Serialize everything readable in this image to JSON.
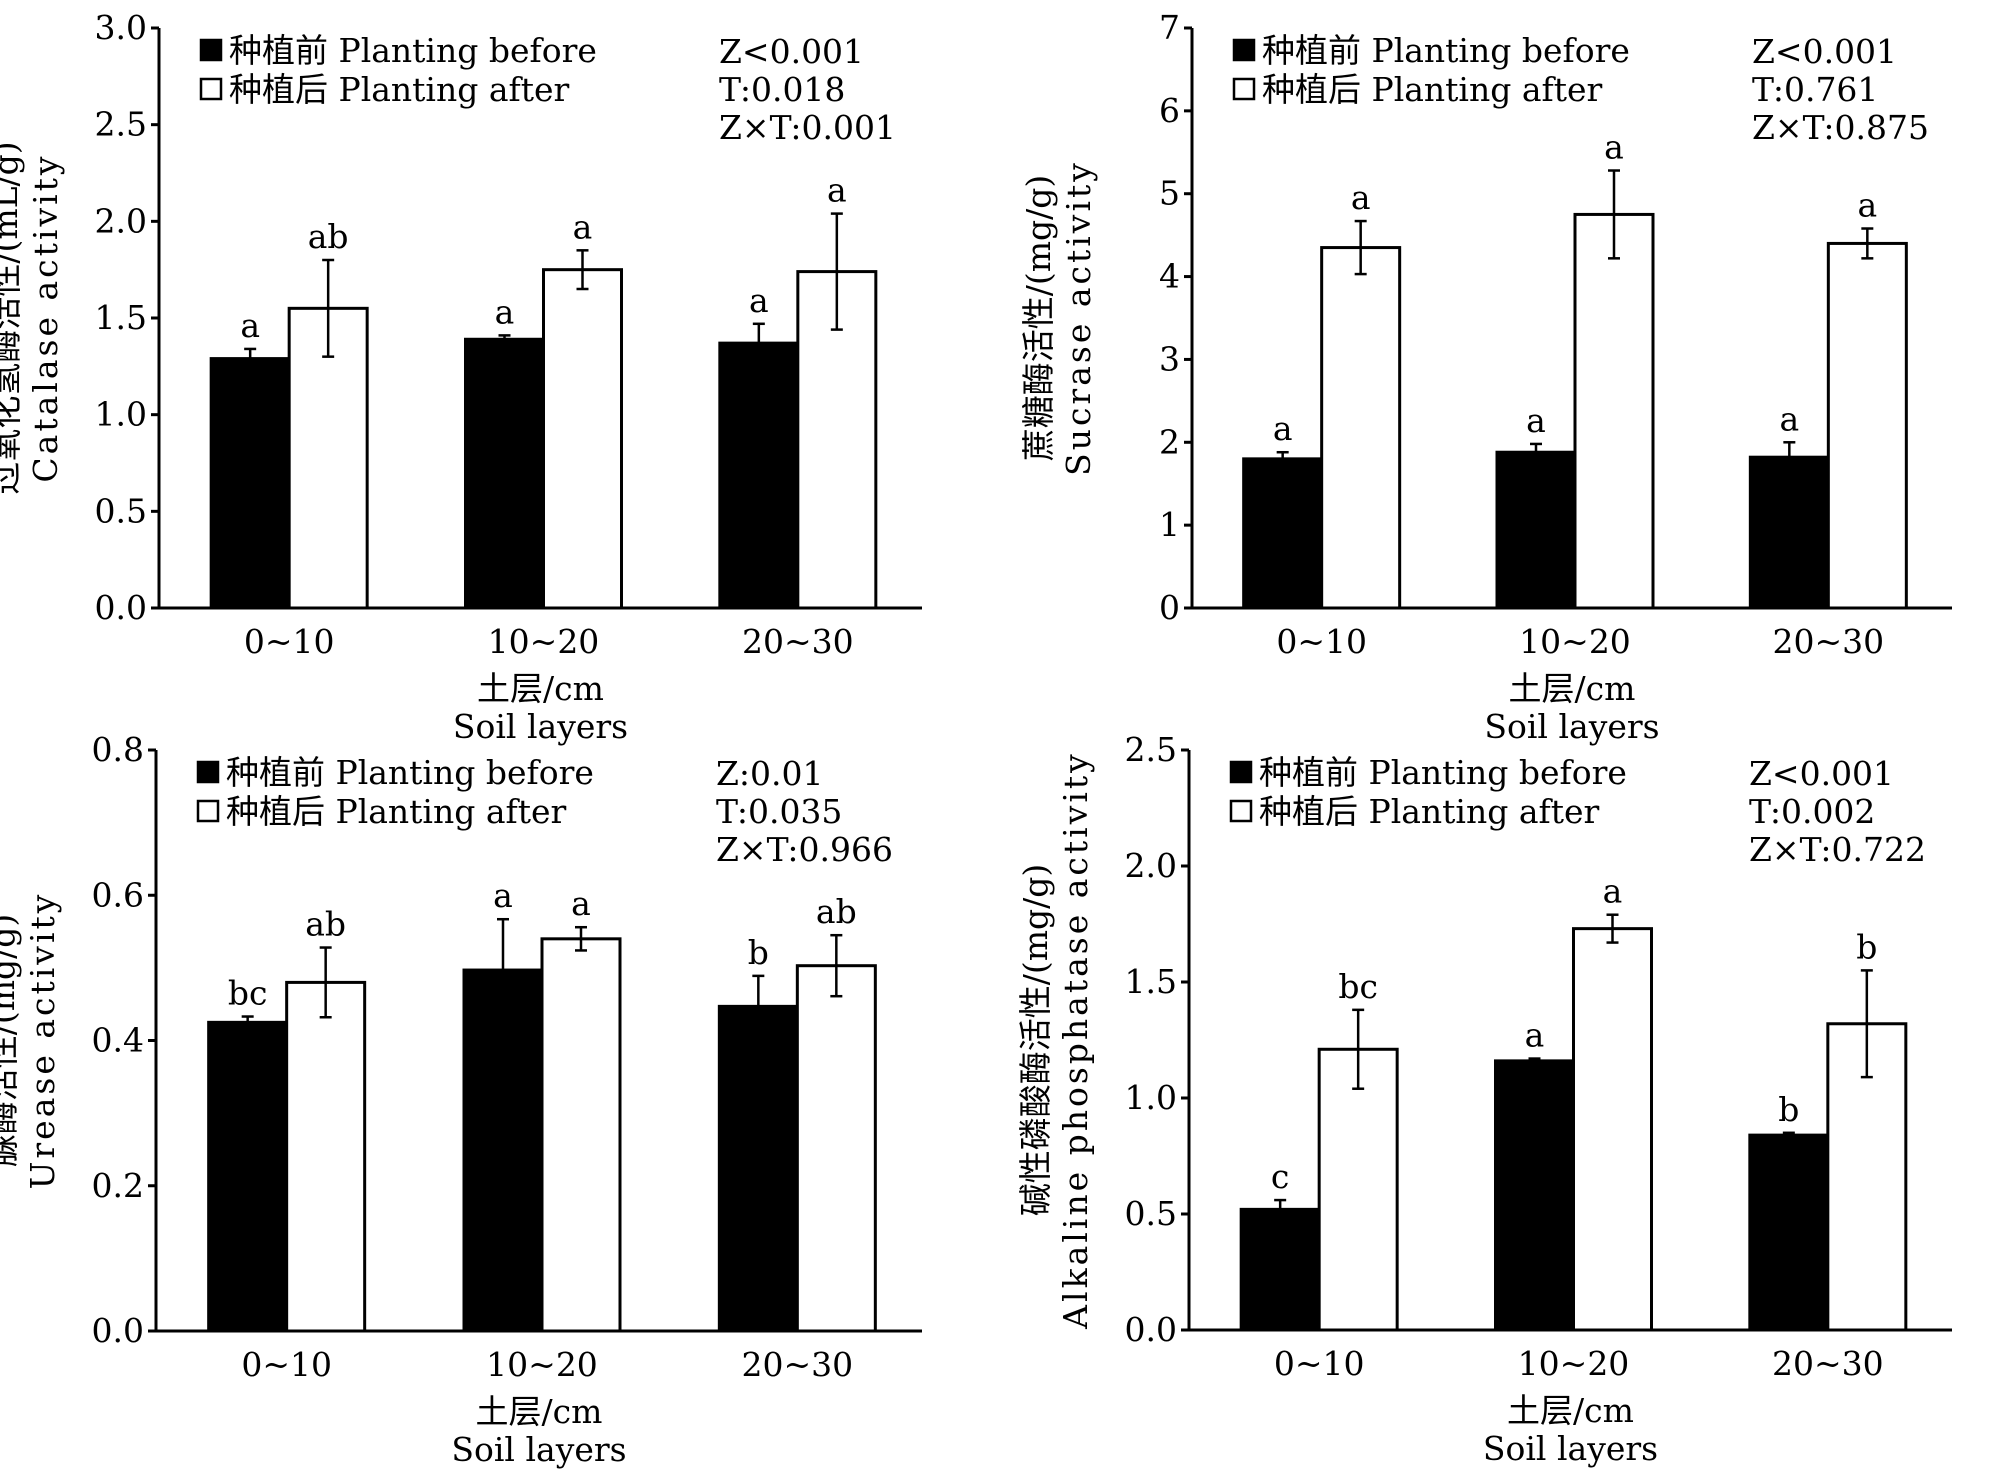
{
  "colors": {
    "before": "#000000",
    "after": "#ffffff",
    "axis": "#000000"
  },
  "chart_data": [
    {
      "type": "bar",
      "title": "",
      "ylabel_cn": "过氧化氢酶活性/(mL/g)",
      "ylabel": "Catalase activity",
      "xlabel_cn": "土层/cm",
      "xlabel": "Soil layers",
      "categories": [
        "0~10",
        "10~20",
        "20~30"
      ],
      "ylim": [
        0,
        3.0
      ],
      "yticks": [
        "0.0",
        "0.5",
        "1.0",
        "1.5",
        "2.0",
        "2.5",
        "3.0"
      ],
      "legend": [
        "种植前 Planting before",
        "种植后 Planting after"
      ],
      "legend_position": "top-left",
      "stats": [
        "Z<0.001",
        "T:0.018",
        "Z×T:0.001"
      ],
      "series": [
        {
          "name": "种植前 Planting before",
          "values": [
            1.29,
            1.39,
            1.37
          ],
          "errors": [
            0.05,
            0.02,
            0.1
          ],
          "letters": [
            "a",
            "a",
            "a"
          ]
        },
        {
          "name": "种植后 Planting after",
          "values": [
            1.55,
            1.75,
            1.74
          ],
          "errors": [
            0.25,
            0.1,
            0.3
          ],
          "letters": [
            "ab",
            "a",
            "a"
          ]
        }
      ]
    },
    {
      "type": "bar",
      "title": "",
      "ylabel_cn": "蔗糖酶活性/(mg/g)",
      "ylabel": "Sucrase activity",
      "xlabel_cn": "土层/cm",
      "xlabel": "Soil layers",
      "categories": [
        "0~10",
        "10~20",
        "20~30"
      ],
      "ylim": [
        0,
        7
      ],
      "yticks": [
        "0",
        "1",
        "2",
        "3",
        "4",
        "5",
        "6",
        "7"
      ],
      "legend": [
        "种植前 Planting before",
        "种植后 Planting after"
      ],
      "legend_position": "top-left",
      "stats": [
        "Z<0.001",
        "T:0.761",
        "Z×T:0.875"
      ],
      "series": [
        {
          "name": "种植前 Planting before",
          "values": [
            1.8,
            1.88,
            1.82
          ],
          "errors": [
            0.08,
            0.1,
            0.18
          ],
          "letters": [
            "a",
            "a",
            "a"
          ]
        },
        {
          "name": "种植后 Planting after",
          "values": [
            4.35,
            4.75,
            4.4
          ],
          "errors": [
            0.32,
            0.53,
            0.18
          ],
          "letters": [
            "a",
            "a",
            "a"
          ]
        }
      ]
    },
    {
      "type": "bar",
      "title": "",
      "ylabel_cn": "脲酶活性/(mg/g)",
      "ylabel": "Urease activity",
      "xlabel_cn": "土层/cm",
      "xlabel": "Soil layers",
      "categories": [
        "0~10",
        "10~20",
        "20~30"
      ],
      "ylim": [
        0,
        0.8
      ],
      "yticks": [
        "0.0",
        "0.2",
        "0.4",
        "0.6",
        "0.8"
      ],
      "legend": [
        "种植前 Planting before",
        "种植后 Planting after"
      ],
      "legend_position": "top-left",
      "stats": [
        "Z:0.01",
        "T:0.035",
        "Z×T:0.966"
      ],
      "series": [
        {
          "name": "种植前 Planting before",
          "values": [
            0.425,
            0.497,
            0.447
          ],
          "errors": [
            0.008,
            0.07,
            0.042
          ],
          "letters": [
            "bc",
            "a",
            "b"
          ]
        },
        {
          "name": "种植后 Planting after",
          "values": [
            0.48,
            0.54,
            0.503
          ],
          "errors": [
            0.048,
            0.016,
            0.042
          ],
          "letters": [
            "ab",
            "a",
            "ab"
          ]
        }
      ]
    },
    {
      "type": "bar",
      "title": "",
      "ylabel_cn": "碱性磷酸酶活性/(mg/g)",
      "ylabel": "Alkaline phosphatase activity",
      "xlabel_cn": "土层/cm",
      "xlabel": "Soil layers",
      "categories": [
        "0~10",
        "10~20",
        "20~30"
      ],
      "ylim": [
        0,
        2.5
      ],
      "yticks": [
        "0.0",
        "0.5",
        "1.0",
        "1.5",
        "2.0",
        "2.5"
      ],
      "legend": [
        "种植前 Planting before",
        "种植后 Planting after"
      ],
      "legend_position": "top-left",
      "stats": [
        "Z<0.001",
        "T:0.002",
        "Z×T:0.722"
      ],
      "series": [
        {
          "name": "种植前 Planting before",
          "values": [
            0.52,
            1.16,
            0.84
          ],
          "errors": [
            0.04,
            0.01,
            0.01
          ],
          "letters": [
            "c",
            "a",
            "b"
          ]
        },
        {
          "name": "种植后 Planting after",
          "values": [
            1.21,
            1.73,
            1.32
          ],
          "errors": [
            0.17,
            0.06,
            0.23
          ],
          "letters": [
            "bc",
            "a",
            "b"
          ]
        }
      ]
    }
  ]
}
